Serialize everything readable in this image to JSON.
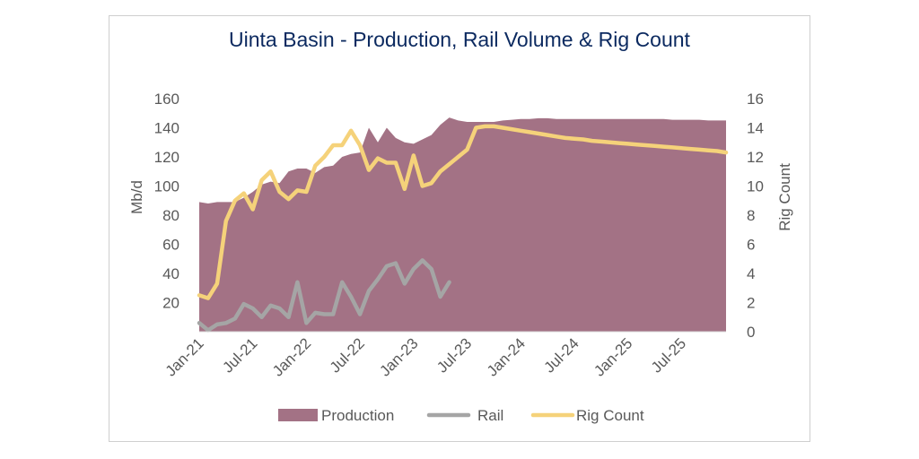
{
  "chart_data": {
    "type": "area+line",
    "title": "Uinta Basin - Production, Rail Volume & Rig Count",
    "ylabel": "Mb/d",
    "y2label": "Rig Count",
    "ylim": [
      0,
      160
    ],
    "y2lim": [
      0,
      16
    ],
    "yticks": [
      "160",
      "140",
      "120",
      "100",
      "80",
      "60",
      "40",
      "20",
      "0"
    ],
    "y2ticks": [
      "16",
      "14",
      "12",
      "10",
      "8",
      "6",
      "4",
      "2",
      "0"
    ],
    "xticks": [
      "Jan-21",
      "Jul-21",
      "Jan-22",
      "Jul-22",
      "Jan-23",
      "Jul-23",
      "Jan-24",
      "Jul-24",
      "Jan-25",
      "Jul-25"
    ],
    "n_months": 60,
    "legend": {
      "placement": "bottom"
    },
    "colors": {
      "production": "#a37285",
      "rail": "#a5a5a5",
      "rig_count": "#f5d27a"
    },
    "series": [
      {
        "name": "Production",
        "type": "area",
        "axis": "left",
        "values": [
          89,
          88,
          89,
          89,
          89,
          92,
          96,
          101,
          103,
          102,
          110,
          112,
          112,
          109,
          113,
          114,
          120,
          122,
          123,
          140,
          130,
          140,
          133,
          130,
          129,
          132,
          135,
          142,
          147,
          145,
          144,
          144,
          144,
          144,
          145,
          145.5,
          146,
          146,
          146.5,
          146.5,
          146,
          146,
          146,
          146,
          146,
          146,
          146,
          146,
          146,
          146,
          146,
          146,
          146,
          145.5,
          145.5,
          145.5,
          145.5,
          145,
          145,
          145
        ]
      },
      {
        "name": "Rail",
        "type": "line",
        "axis": "right",
        "values": [
          0.6,
          0.1,
          0.5,
          0.6,
          0.9,
          1.9,
          1.6,
          1.0,
          1.8,
          1.6,
          1.0,
          3.4,
          0.6,
          1.3,
          1.2,
          1.2,
          3.4,
          2.4,
          1.2,
          2.8,
          3.6,
          4.5,
          4.7,
          3.3,
          4.3,
          4.9,
          4.3,
          2.4,
          3.4
        ]
      },
      {
        "name": "Rig Count",
        "type": "line",
        "axis": "right",
        "values": [
          2.5,
          2.3,
          3.3,
          7.6,
          9.0,
          9.5,
          8.4,
          10.4,
          11.0,
          9.6,
          9.1,
          9.7,
          9.6,
          11.4,
          12.0,
          12.8,
          12.8,
          13.8,
          12.8,
          11.1,
          11.9,
          11.6,
          11.6,
          9.8,
          12.1,
          10.0,
          10.2,
          11.0,
          11.5,
          12.0,
          12.5,
          14.0,
          14.1,
          14.1,
          14.0,
          13.9,
          13.8,
          13.7,
          13.6,
          13.5,
          13.4,
          13.3,
          13.25,
          13.2,
          13.1,
          13.05,
          13.0,
          12.95,
          12.9,
          12.85,
          12.8,
          12.75,
          12.7,
          12.65,
          12.6,
          12.55,
          12.5,
          12.45,
          12.4,
          12.3
        ]
      }
    ]
  }
}
